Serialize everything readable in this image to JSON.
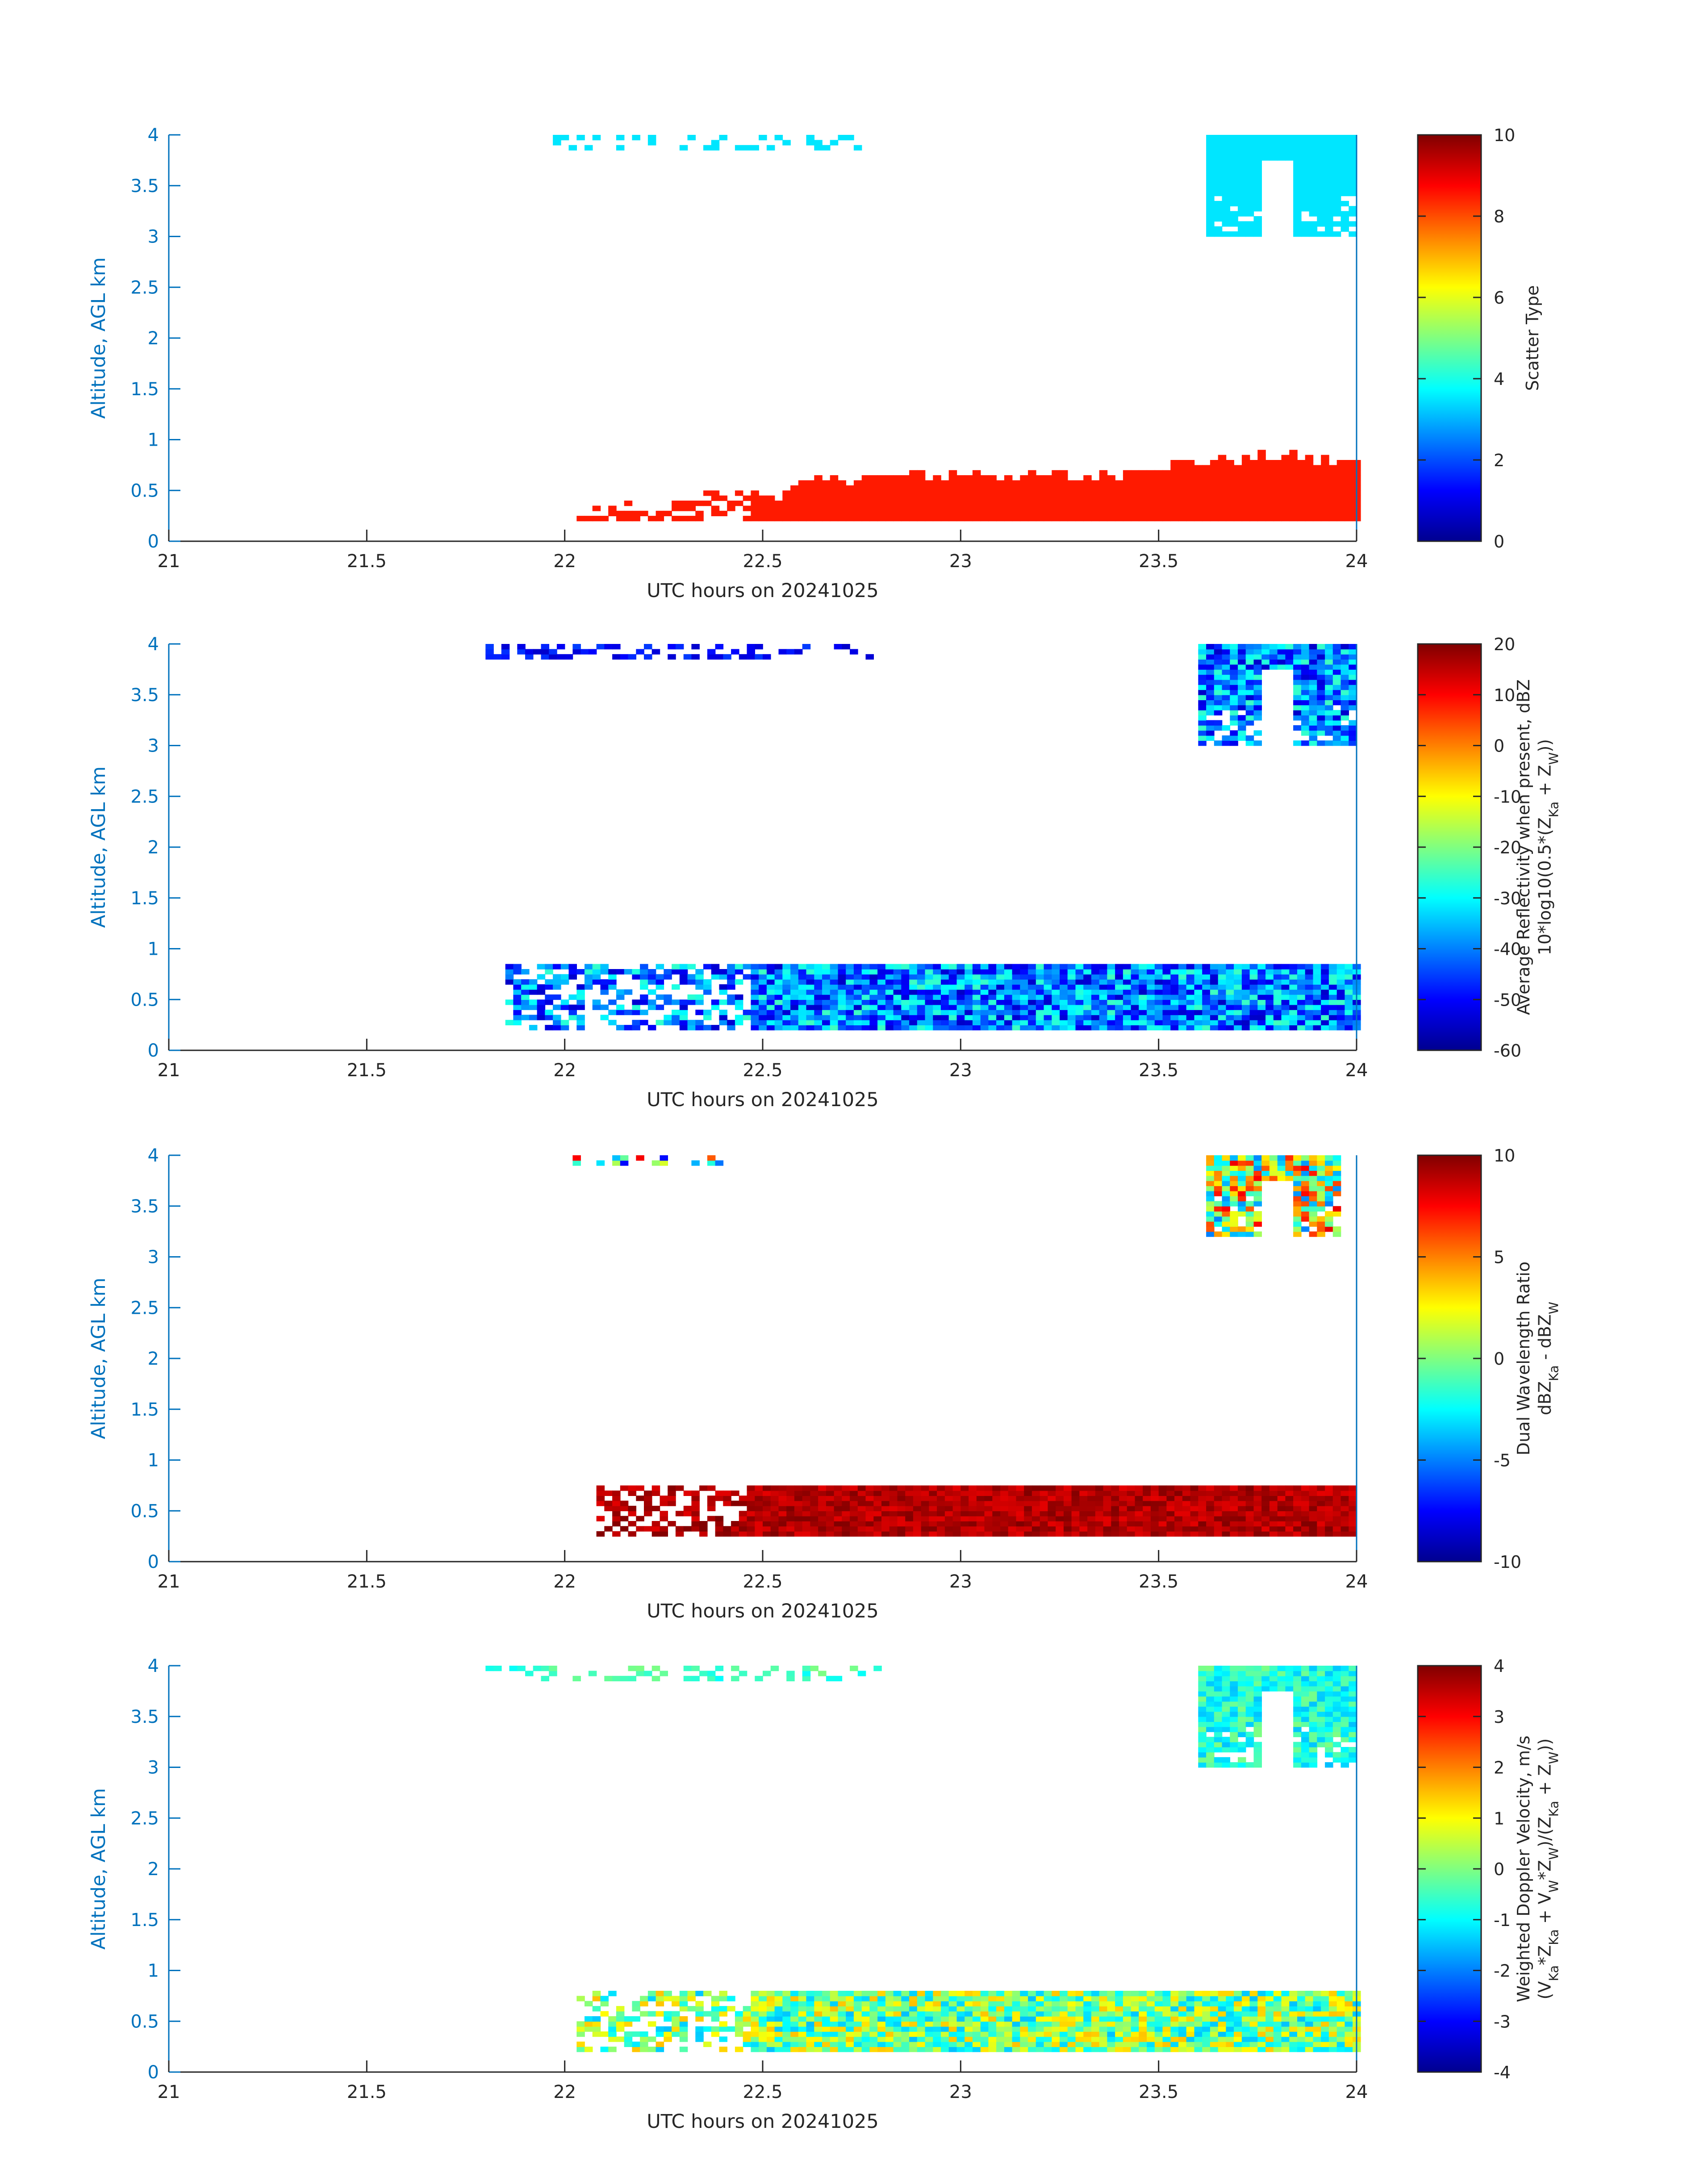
{
  "figure": {
    "xlabel": "UTC hours on 20241025",
    "ylabel": "Altitude, AGL km"
  },
  "colors": {
    "axis_blue": "#0072bd",
    "frame_gray": "#262626",
    "jet": [
      "#00008f",
      "#0000ff",
      "#0080ff",
      "#00ffff",
      "#80ff80",
      "#ffff00",
      "#ff8000",
      "#ff0000",
      "#800000"
    ]
  },
  "chart_data": [
    {
      "type": "heatmap",
      "xlabel": "UTC hours on 20241025",
      "ylabel": "Altitude, AGL km",
      "xlim": [
        21,
        24
      ],
      "ylim": [
        0,
        4
      ],
      "xticks": [
        "21",
        "21.5",
        "22",
        "22.5",
        "23",
        "23.5",
        "24"
      ],
      "yticks": [
        "0",
        "0.5",
        "1",
        "1.5",
        "2",
        "2.5",
        "3",
        "3.5",
        "4"
      ],
      "colorbar": {
        "label_lines": [
          "Scatter Type"
        ],
        "clim": [
          0,
          10
        ],
        "ticks": [
          "0",
          "2",
          "4",
          "6",
          "8",
          "10"
        ]
      },
      "colormap": "jet",
      "regions": [
        {
          "desc": "surface layer",
          "x": [
            22.03,
            24.0
          ],
          "y_bottom": 0.2,
          "y_top_profile": [
            [
              22.03,
              0.35
            ],
            [
              22.2,
              0.3
            ],
            [
              22.35,
              0.45
            ],
            [
              22.5,
              0.45
            ],
            [
              22.7,
              0.6
            ],
            [
              23.0,
              0.65
            ],
            [
              23.3,
              0.6
            ],
            [
              23.5,
              0.75
            ],
            [
              23.8,
              0.8
            ],
            [
              24.0,
              0.75
            ]
          ],
          "value": 8.5
        },
        {
          "desc": "upper cloud",
          "x": [
            23.62,
            24.0
          ],
          "y": [
            3.0,
            4.0
          ],
          "value": 3.5
        },
        {
          "desc": "sparse top returns",
          "x": [
            21.95,
            22.75
          ],
          "y": [
            3.85,
            4.0
          ],
          "value": 3.5
        }
      ]
    },
    {
      "type": "heatmap",
      "xlabel": "UTC hours on 20241025",
      "ylabel": "Altitude, AGL km",
      "xlim": [
        21,
        24
      ],
      "ylim": [
        0,
        4
      ],
      "xticks": [
        "21",
        "21.5",
        "22",
        "22.5",
        "23",
        "23.5",
        "24"
      ],
      "yticks": [
        "0",
        "0.5",
        "1",
        "1.5",
        "2",
        "2.5",
        "3",
        "3.5",
        "4"
      ],
      "colorbar": {
        "label_lines": [
          "Average Reflectivity when present, dBZ",
          "10*log10(0.5*(Z_Ka + Z_W))"
        ],
        "clim": [
          -60,
          20
        ],
        "ticks": [
          "-60",
          "-50",
          "-40",
          "-30",
          "-20",
          "-10",
          "0",
          "10",
          "20"
        ]
      },
      "colormap": "jet",
      "regions": [
        {
          "desc": "surface layer",
          "x": [
            21.85,
            24.0
          ],
          "y": [
            0.2,
            0.85
          ],
          "value_range": [
            -55,
            -25
          ]
        },
        {
          "desc": "upper cloud",
          "x": [
            23.6,
            24.0
          ],
          "y": [
            3.0,
            4.0
          ],
          "value_range": [
            -55,
            -25
          ]
        },
        {
          "desc": "sparse top returns",
          "x": [
            21.8,
            22.8
          ],
          "y": [
            3.85,
            4.0
          ],
          "value_range": [
            -55,
            -45
          ]
        }
      ]
    },
    {
      "type": "heatmap",
      "xlabel": "UTC hours on 20241025",
      "ylabel": "Altitude, AGL km",
      "xlim": [
        21,
        24
      ],
      "ylim": [
        0,
        4
      ],
      "xticks": [
        "21",
        "21.5",
        "22",
        "22.5",
        "23",
        "23.5",
        "24"
      ],
      "yticks": [
        "0",
        "0.5",
        "1",
        "1.5",
        "2",
        "2.5",
        "3",
        "3.5",
        "4"
      ],
      "colorbar": {
        "label_lines": [
          "Dual Wavelength Ratio",
          "dBZ_Ka - dBZ_W"
        ],
        "clim": [
          -10,
          10
        ],
        "ticks": [
          "-10",
          "-5",
          "0",
          "5",
          "10"
        ]
      },
      "colormap": "jet",
      "regions": [
        {
          "desc": "surface layer",
          "x": [
            22.08,
            24.0
          ],
          "y": [
            0.25,
            0.75
          ],
          "value_range": [
            8,
            10
          ]
        },
        {
          "desc": "upper cloud",
          "x": [
            23.62,
            23.95
          ],
          "y": [
            3.2,
            4.0
          ],
          "value_range": [
            -5,
            8
          ]
        },
        {
          "desc": "sparse top returns",
          "x": [
            22.0,
            22.4
          ],
          "y": [
            3.9,
            4.0
          ],
          "value_range": [
            -8,
            8
          ]
        }
      ]
    },
    {
      "type": "heatmap",
      "xlabel": "UTC hours on 20241025",
      "ylabel": "Altitude, AGL km",
      "xlim": [
        21,
        24
      ],
      "ylim": [
        0,
        4
      ],
      "xticks": [
        "21",
        "21.5",
        "22",
        "22.5",
        "23",
        "23.5",
        "24"
      ],
      "yticks": [
        "0",
        "0.5",
        "1",
        "1.5",
        "2",
        "2.5",
        "3",
        "3.5",
        "4"
      ],
      "colorbar": {
        "label_lines": [
          "Weighted Doppler Velocity, m/s",
          "(V_Ka*Z_Ka + V_W*Z_W)/(Z_Ka + Z_W))"
        ],
        "clim": [
          -4,
          4
        ],
        "ticks": [
          "-4",
          "-3",
          "-2",
          "-1",
          "0",
          "1",
          "2",
          "3",
          "4"
        ]
      },
      "colormap": "jet",
      "regions": [
        {
          "desc": "surface layer",
          "x": [
            22.03,
            24.0
          ],
          "y": [
            0.2,
            0.8
          ],
          "value_range": [
            -1.5,
            1.5
          ]
        },
        {
          "desc": "upper cloud",
          "x": [
            23.6,
            24.0
          ],
          "y": [
            3.0,
            4.0
          ],
          "value_range": [
            -1.5,
            0
          ]
        },
        {
          "desc": "sparse top returns",
          "x": [
            21.8,
            22.8
          ],
          "y": [
            3.85,
            4.0
          ],
          "value_range": [
            -1,
            0
          ]
        }
      ]
    }
  ]
}
